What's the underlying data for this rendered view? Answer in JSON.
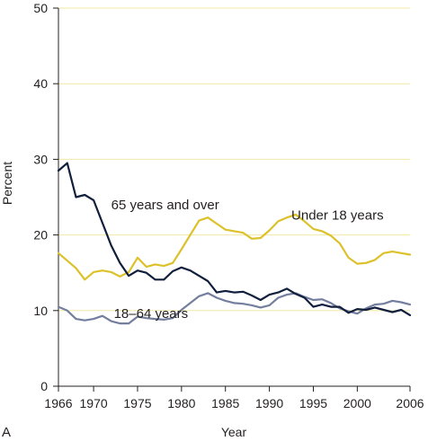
{
  "panel_label": "A",
  "chart_data": {
    "type": "line",
    "title": "",
    "xlabel": "Year",
    "ylabel": "Percent",
    "xlim": [
      1966,
      2006
    ],
    "ylim": [
      0,
      50
    ],
    "xticks": [
      1966,
      1970,
      1975,
      1980,
      1985,
      1990,
      1995,
      2000,
      2006
    ],
    "yticks": [
      0,
      10,
      20,
      30,
      40,
      50
    ],
    "grid": "horizontal",
    "gridline_color": "#f2e8a6",
    "series": [
      {
        "name": "65 years and over",
        "color": "#111f3d",
        "x": [
          1966,
          1967,
          1968,
          1969,
          1970,
          1971,
          1972,
          1973,
          1974,
          1975,
          1976,
          1977,
          1978,
          1979,
          1980,
          1981,
          1982,
          1983,
          1984,
          1985,
          1986,
          1987,
          1988,
          1989,
          1990,
          1991,
          1992,
          1993,
          1994,
          1995,
          1996,
          1997,
          1998,
          1999,
          2000,
          2001,
          2002,
          2003,
          2004,
          2005,
          2006
        ],
        "values": [
          28.5,
          29.5,
          25.0,
          25.3,
          24.6,
          21.6,
          18.6,
          16.3,
          14.6,
          15.3,
          15.0,
          14.1,
          14.1,
          15.2,
          15.7,
          15.3,
          14.6,
          13.9,
          12.4,
          12.6,
          12.4,
          12.5,
          12.0,
          11.4,
          12.1,
          12.4,
          12.9,
          12.2,
          11.7,
          10.5,
          10.8,
          10.5,
          10.5,
          9.7,
          10.2,
          10.1,
          10.4,
          10.1,
          9.8,
          10.1,
          9.4
        ],
        "label_position": {
          "x": 1972,
          "y": 24.0
        }
      },
      {
        "name": "Under 18 years",
        "color": "#dcc12a",
        "x": [
          1966,
          1967,
          1968,
          1969,
          1970,
          1971,
          1972,
          1973,
          1974,
          1975,
          1976,
          1977,
          1978,
          1979,
          1980,
          1981,
          1982,
          1983,
          1984,
          1985,
          1986,
          1987,
          1988,
          1989,
          1990,
          1991,
          1992,
          1993,
          1994,
          1995,
          1996,
          1997,
          1998,
          1999,
          2000,
          2001,
          2002,
          2003,
          2004,
          2005,
          2006
        ],
        "values": [
          17.6,
          16.6,
          15.6,
          14.1,
          15.1,
          15.3,
          15.1,
          14.5,
          15.1,
          17.0,
          15.8,
          16.1,
          15.9,
          16.3,
          18.1,
          20.0,
          21.9,
          22.3,
          21.5,
          20.7,
          20.5,
          20.3,
          19.5,
          19.6,
          20.6,
          21.8,
          22.3,
          22.7,
          21.8,
          20.8,
          20.5,
          19.9,
          18.9,
          17.0,
          16.2,
          16.3,
          16.7,
          17.6,
          17.8,
          17.6,
          17.4
        ],
        "label_position": {
          "x": 1992.5,
          "y": 22.6
        }
      },
      {
        "name": "18–64 years",
        "color": "#747f9f",
        "x": [
          1966,
          1967,
          1968,
          1969,
          1970,
          1971,
          1972,
          1973,
          1974,
          1975,
          1976,
          1977,
          1978,
          1979,
          1980,
          1981,
          1982,
          1983,
          1984,
          1985,
          1986,
          1987,
          1988,
          1989,
          1990,
          1991,
          1992,
          1993,
          1994,
          1995,
          1996,
          1997,
          1998,
          1999,
          2000,
          2001,
          2002,
          2003,
          2004,
          2005,
          2006
        ],
        "values": [
          10.5,
          10.0,
          8.9,
          8.7,
          8.9,
          9.3,
          8.6,
          8.3,
          8.3,
          9.2,
          9.0,
          8.9,
          8.8,
          9.0,
          10.1,
          11.0,
          11.9,
          12.3,
          11.7,
          11.3,
          11.0,
          10.9,
          10.7,
          10.4,
          10.7,
          11.7,
          12.1,
          12.3,
          11.8,
          11.4,
          11.5,
          11.0,
          10.3,
          9.9,
          9.6,
          10.3,
          10.8,
          10.9,
          11.3,
          11.1,
          10.8
        ],
        "label_position": {
          "x": 1972.3,
          "y": 9.6
        }
      }
    ]
  }
}
